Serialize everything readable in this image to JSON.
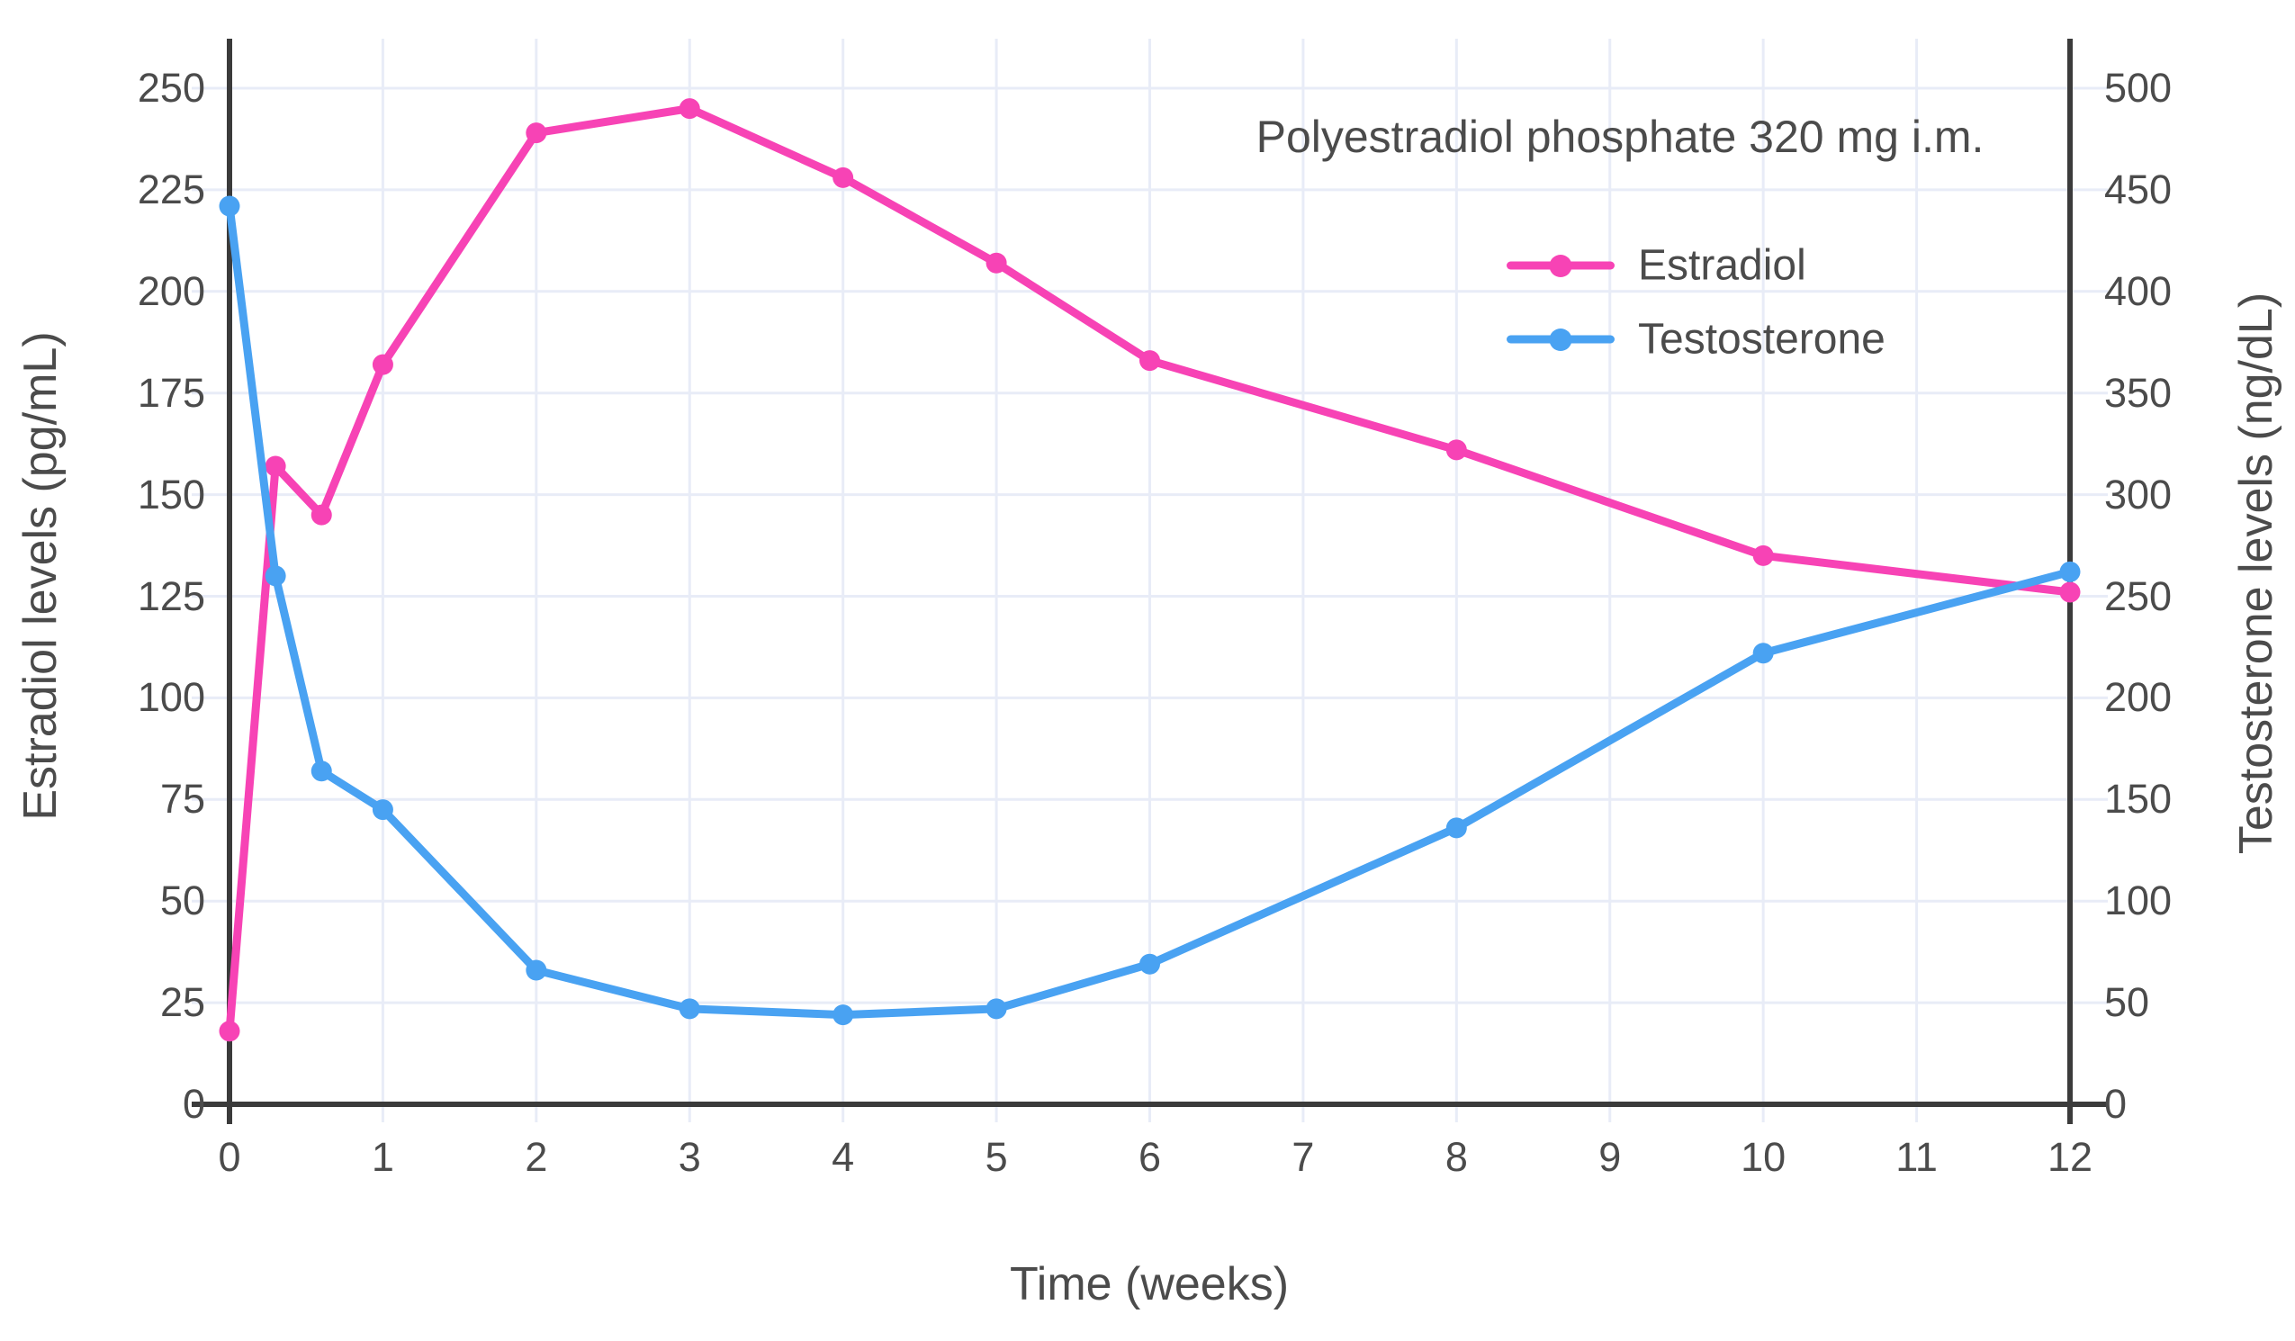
{
  "chart_data": {
    "type": "line",
    "title": "Polyestradiol phosphate 320 mg i.m.",
    "xlabel": "Time (weeks)",
    "ylabel_left": "Estradiol levels (pg/mL)",
    "ylabel_right": "Testosterone levels (ng/dL)",
    "xlim": [
      0,
      12
    ],
    "ylim_left": [
      0,
      250
    ],
    "ylim_right": [
      0,
      500
    ],
    "x_ticks": [
      0,
      1,
      2,
      3,
      4,
      5,
      6,
      7,
      8,
      9,
      10,
      11,
      12
    ],
    "y_left_ticks": [
      0,
      25,
      50,
      75,
      100,
      125,
      150,
      175,
      200,
      225,
      250
    ],
    "y_right_ticks": [
      0,
      50,
      100,
      150,
      200,
      250,
      300,
      350,
      400,
      450,
      500
    ],
    "grid": true,
    "legend_position": "upper right inside",
    "x": [
      0,
      0.3,
      0.6,
      1,
      2,
      3,
      4,
      5,
      6,
      8,
      10,
      12
    ],
    "series": [
      {
        "name": "Estradiol",
        "axis": "left",
        "unit": "pg/mL",
        "color": "#f743b5",
        "values": [
          18,
          157,
          145,
          182,
          239,
          245,
          228,
          207,
          183,
          161,
          135,
          126
        ]
      },
      {
        "name": "Testosterone",
        "axis": "right",
        "unit": "ng/dL",
        "color": "#49a2f2",
        "values": [
          442,
          260,
          164,
          145,
          66,
          47,
          44,
          47,
          69,
          136,
          222,
          262
        ]
      }
    ]
  },
  "colors": {
    "background": "#ffffff",
    "grid": "#e8ecf7",
    "axis": "#3b3b3b",
    "text": "#4b4b4b",
    "estradiol": "#f743b5",
    "testosterone": "#49a2f2"
  }
}
